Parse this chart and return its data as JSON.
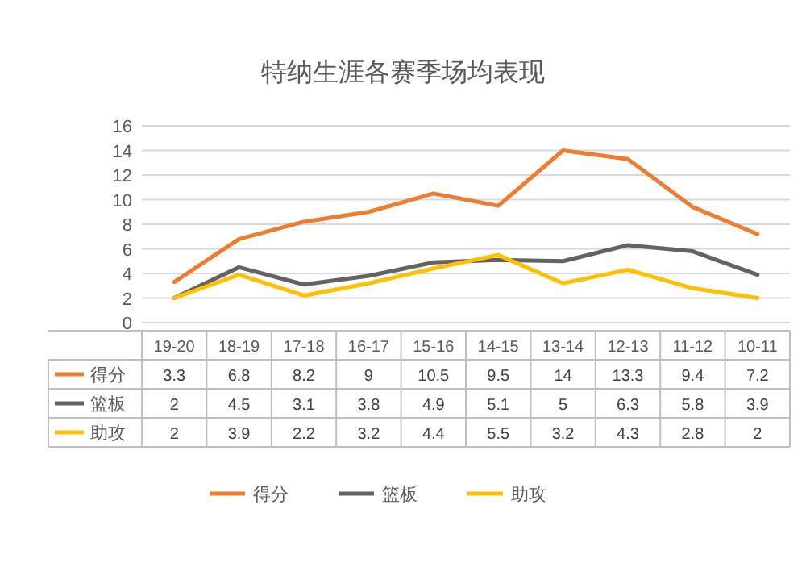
{
  "chart_data": {
    "type": "line",
    "title": "特纳生涯各赛季场均表现",
    "categories": [
      "19-20",
      "18-19",
      "17-18",
      "16-17",
      "15-16",
      "14-15",
      "13-14",
      "12-13",
      "11-12",
      "10-11"
    ],
    "series": [
      {
        "name": "得分",
        "color": "#ed7d31",
        "values": [
          3.3,
          6.8,
          8.2,
          9,
          10.5,
          9.5,
          14,
          13.3,
          9.4,
          7.2
        ]
      },
      {
        "name": "篮板",
        "color": "#636363",
        "values": [
          2,
          4.5,
          3.1,
          3.8,
          4.9,
          5.1,
          5,
          6.3,
          5.8,
          3.9
        ]
      },
      {
        "name": "助攻",
        "color": "#ffc000",
        "values": [
          2,
          3.9,
          2.2,
          3.2,
          4.4,
          5.5,
          3.2,
          4.3,
          2.8,
          2
        ]
      }
    ],
    "ylim": [
      0,
      16
    ],
    "yticks": [
      0,
      2,
      4,
      6,
      8,
      10,
      12,
      14,
      16
    ],
    "grid": "y",
    "legend": "bottom",
    "data_labels": true,
    "marker": "none",
    "line_style": "solid"
  }
}
